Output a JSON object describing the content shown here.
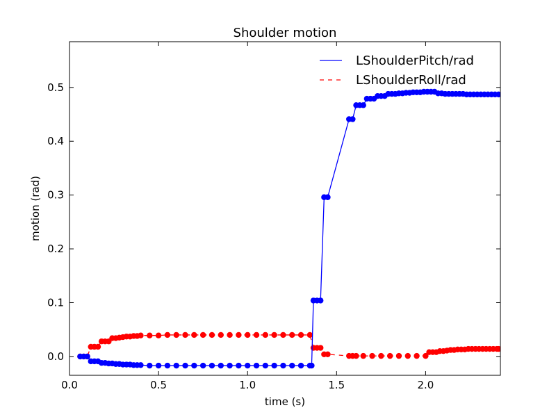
{
  "chart_data": {
    "type": "line",
    "title": "Shoulder motion",
    "xlabel": "time (s)",
    "ylabel": "motion (rad)",
    "xlim": [
      0.0,
      2.42
    ],
    "ylim": [
      -0.035,
      0.585
    ],
    "xticks": [
      "0.0",
      "0.5",
      "1.0",
      "1.5",
      "2.0"
    ],
    "yticks": [
      "0.0",
      "0.1",
      "0.2",
      "0.3",
      "0.4",
      "0.5"
    ],
    "legend_position": "top-right",
    "grid": false,
    "series": [
      {
        "name": "LShoulderPitch/rad",
        "color": "#0000ff",
        "line_style": "solid",
        "marker": "circle",
        "x": [
          0.06,
          0.08,
          0.1,
          0.12,
          0.14,
          0.16,
          0.18,
          0.2,
          0.22,
          0.24,
          0.26,
          0.28,
          0.3,
          0.32,
          0.34,
          0.36,
          0.38,
          0.4,
          0.45,
          0.5,
          0.55,
          0.6,
          0.65,
          0.7,
          0.75,
          0.8,
          0.85,
          0.9,
          0.95,
          1.0,
          1.05,
          1.1,
          1.15,
          1.2,
          1.25,
          1.3,
          1.35,
          1.36,
          1.37,
          1.39,
          1.41,
          1.43,
          1.45,
          1.57,
          1.59,
          1.61,
          1.63,
          1.65,
          1.67,
          1.69,
          1.71,
          1.73,
          1.75,
          1.77,
          1.79,
          1.81,
          1.83,
          1.85,
          1.87,
          1.89,
          1.91,
          1.93,
          1.95,
          1.97,
          1.99,
          2.01,
          2.03,
          2.05,
          2.07,
          2.09,
          2.11,
          2.13,
          2.15,
          2.17,
          2.19,
          2.21,
          2.23,
          2.25,
          2.27,
          2.29,
          2.31,
          2.33,
          2.35,
          2.37,
          2.39,
          2.41
        ],
        "y": [
          0.0,
          0.0,
          0.0,
          -0.009,
          -0.009,
          -0.009,
          -0.012,
          -0.012,
          -0.013,
          -0.013,
          -0.014,
          -0.014,
          -0.015,
          -0.015,
          -0.015,
          -0.016,
          -0.016,
          -0.016,
          -0.017,
          -0.017,
          -0.017,
          -0.017,
          -0.017,
          -0.017,
          -0.017,
          -0.017,
          -0.017,
          -0.017,
          -0.017,
          -0.017,
          -0.017,
          -0.017,
          -0.017,
          -0.017,
          -0.017,
          -0.017,
          -0.017,
          -0.017,
          0.104,
          0.104,
          0.104,
          0.296,
          0.296,
          0.441,
          0.441,
          0.467,
          0.467,
          0.467,
          0.479,
          0.479,
          0.479,
          0.484,
          0.484,
          0.484,
          0.488,
          0.488,
          0.488,
          0.489,
          0.489,
          0.49,
          0.49,
          0.491,
          0.491,
          0.491,
          0.492,
          0.492,
          0.492,
          0.492,
          0.489,
          0.489,
          0.488,
          0.488,
          0.488,
          0.488,
          0.488,
          0.488,
          0.487,
          0.487,
          0.487,
          0.487,
          0.487,
          0.487,
          0.487,
          0.487,
          0.487,
          0.487
        ]
      },
      {
        "name": "LShoulderRoll/rad",
        "color": "#ff0000",
        "line_style": "dashed",
        "marker": "circle",
        "x": [
          0.06,
          0.08,
          0.1,
          0.12,
          0.14,
          0.16,
          0.18,
          0.2,
          0.22,
          0.24,
          0.26,
          0.28,
          0.3,
          0.32,
          0.34,
          0.36,
          0.38,
          0.4,
          0.45,
          0.5,
          0.55,
          0.6,
          0.65,
          0.7,
          0.75,
          0.8,
          0.85,
          0.9,
          0.95,
          1.0,
          1.05,
          1.1,
          1.15,
          1.2,
          1.25,
          1.3,
          1.35,
          1.37,
          1.39,
          1.41,
          1.43,
          1.45,
          1.57,
          1.59,
          1.61,
          1.65,
          1.7,
          1.75,
          1.8,
          1.85,
          1.9,
          1.95,
          2.0,
          2.02,
          2.04,
          2.06,
          2.08,
          2.1,
          2.12,
          2.14,
          2.16,
          2.18,
          2.2,
          2.22,
          2.24,
          2.26,
          2.28,
          2.3,
          2.32,
          2.34,
          2.36,
          2.38,
          2.4,
          2.41
        ],
        "y": [
          0.0,
          0.0,
          0.0,
          0.018,
          0.018,
          0.018,
          0.028,
          0.028,
          0.028,
          0.034,
          0.034,
          0.035,
          0.036,
          0.037,
          0.037,
          0.038,
          0.038,
          0.039,
          0.039,
          0.039,
          0.04,
          0.04,
          0.04,
          0.04,
          0.04,
          0.04,
          0.04,
          0.04,
          0.04,
          0.04,
          0.04,
          0.04,
          0.04,
          0.04,
          0.04,
          0.04,
          0.04,
          0.016,
          0.016,
          0.016,
          0.004,
          0.004,
          0.001,
          0.001,
          0.001,
          0.001,
          0.001,
          0.001,
          0.001,
          0.001,
          0.001,
          0.001,
          0.001,
          0.008,
          0.008,
          0.008,
          0.01,
          0.01,
          0.011,
          0.012,
          0.012,
          0.013,
          0.013,
          0.013,
          0.014,
          0.014,
          0.014,
          0.014,
          0.014,
          0.014,
          0.014,
          0.014,
          0.014,
          0.014
        ]
      }
    ]
  }
}
